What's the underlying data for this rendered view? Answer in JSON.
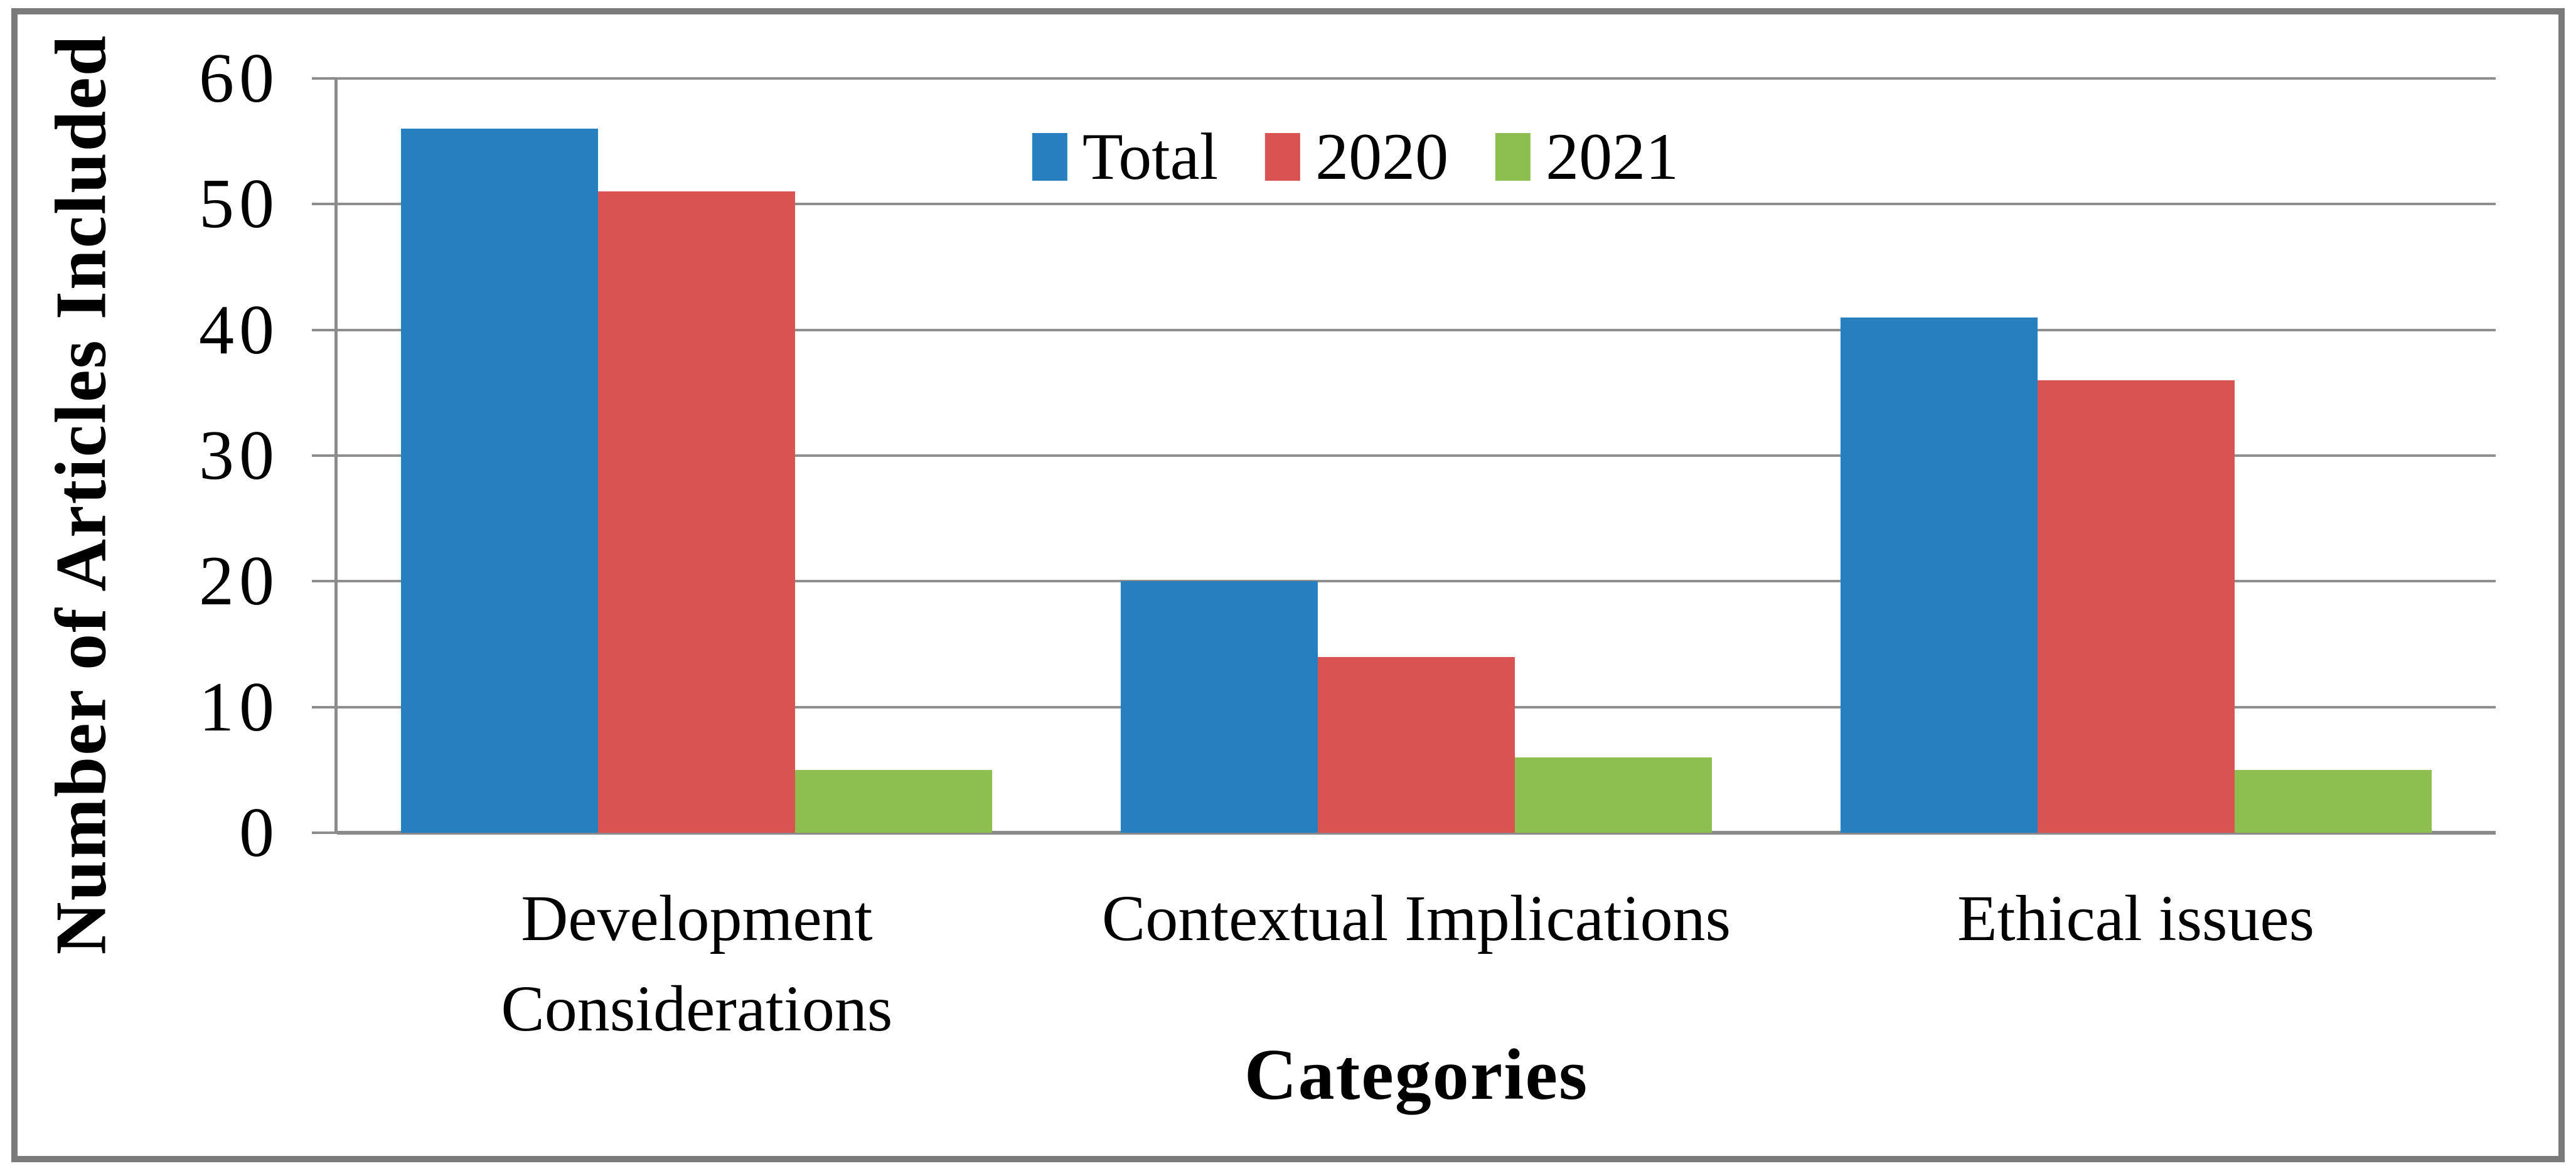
{
  "chart_data": {
    "type": "bar",
    "title": "",
    "categories": [
      "Development Considerations",
      "Contextual Implications",
      "Ethical issues"
    ],
    "category_lines": [
      [
        "Development",
        "Considerations"
      ],
      [
        "Contextual Implications"
      ],
      [
        "Ethical issues"
      ]
    ],
    "series": [
      {
        "name": "Total",
        "color": "#2680BF",
        "values": [
          56,
          20,
          41
        ]
      },
      {
        "name": "2020",
        "color": "#DA5350",
        "values": [
          51,
          14,
          36
        ]
      },
      {
        "name": "2021",
        "color": "#8DBE50",
        "values": [
          5,
          6,
          5
        ]
      }
    ],
    "xlabel": "Categories",
    "ylabel": "Number of Articles Included",
    "ylim": [
      0,
      60
    ],
    "yticks": [
      0,
      10,
      20,
      30,
      40,
      50,
      60
    ],
    "grid": "horizontal",
    "legend_position": "top-center"
  },
  "style": {
    "gridline_color": "#8F8F8F",
    "axis_color": "#8C8C8C",
    "border_color": "#7A7A7A",
    "text_color": "#000000",
    "background": "#FFFFFF"
  }
}
